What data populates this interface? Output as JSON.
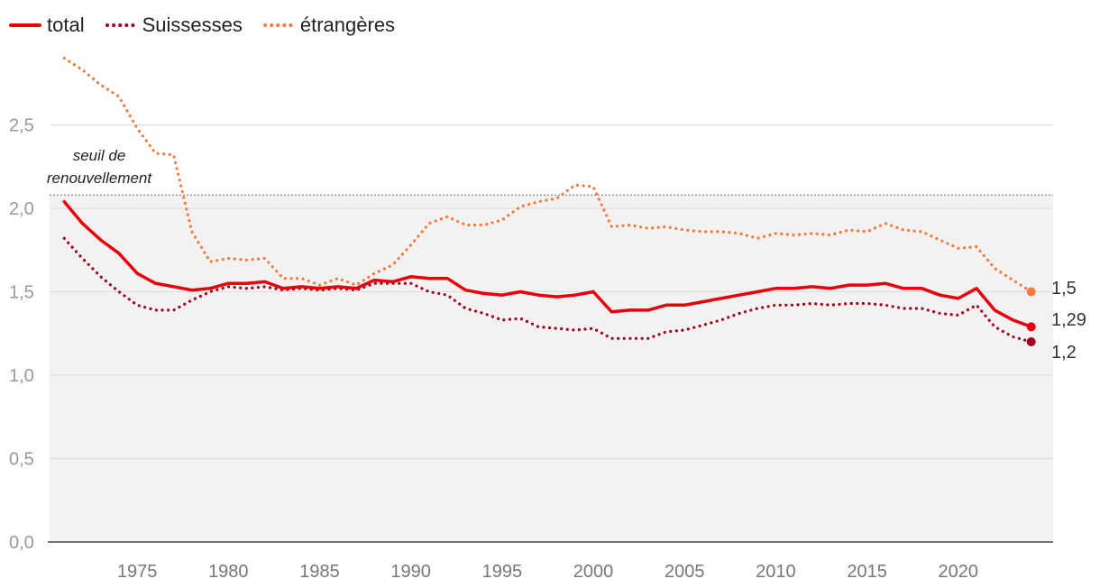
{
  "chart_data": {
    "type": "line",
    "title": "",
    "xlabel": "",
    "ylabel": "",
    "ylim": [
      0,
      3.0
    ],
    "yticks": [
      0,
      0.5,
      1.0,
      1.5,
      2.0,
      2.5
    ],
    "ytick_labels": [
      "0,0",
      "0,5",
      "1,0",
      "1,5",
      "2,0",
      "2,5"
    ],
    "xticks": [
      1975,
      1980,
      1985,
      1990,
      1995,
      2000,
      2005,
      2010,
      2015,
      2020
    ],
    "xtick_labels": [
      "1975",
      "1980",
      "1985",
      "1990",
      "1995",
      "2000",
      "2005",
      "2010",
      "2015",
      "2020"
    ],
    "x": [
      1971,
      1972,
      1973,
      1974,
      1975,
      1976,
      1977,
      1978,
      1979,
      1980,
      1981,
      1982,
      1983,
      1984,
      1985,
      1986,
      1987,
      1988,
      1989,
      1990,
      1991,
      1992,
      1993,
      1994,
      1995,
      1996,
      1997,
      1998,
      1999,
      2000,
      2001,
      2002,
      2003,
      2004,
      2005,
      2006,
      2007,
      2008,
      2009,
      2010,
      2011,
      2012,
      2013,
      2014,
      2015,
      2016,
      2017,
      2018,
      2019,
      2020,
      2021,
      2022,
      2023,
      2024
    ],
    "reference_line": {
      "y": 2.08,
      "label_lines": [
        "seuil de",
        "renouvellement"
      ]
    },
    "shaded_below_reference": true,
    "legend_position": "top-left",
    "series": [
      {
        "name": "total",
        "color": "#e8000b",
        "style": "solid",
        "end_label": "1,29",
        "values": [
          2.04,
          1.91,
          1.81,
          1.73,
          1.61,
          1.55,
          1.53,
          1.51,
          1.52,
          1.55,
          1.55,
          1.56,
          1.52,
          1.53,
          1.52,
          1.53,
          1.52,
          1.57,
          1.56,
          1.59,
          1.58,
          1.58,
          1.51,
          1.49,
          1.48,
          1.5,
          1.48,
          1.47,
          1.48,
          1.5,
          1.38,
          1.39,
          1.39,
          1.42,
          1.42,
          1.44,
          1.46,
          1.48,
          1.5,
          1.52,
          1.52,
          1.53,
          1.52,
          1.54,
          1.54,
          1.55,
          1.52,
          1.52,
          1.48,
          1.46,
          1.52,
          1.39,
          1.33,
          1.29
        ]
      },
      {
        "name": "Suissesses",
        "color": "#a0001e",
        "style": "dotted",
        "end_label": "1,2",
        "values": [
          1.82,
          1.7,
          1.59,
          1.5,
          1.42,
          1.39,
          1.39,
          1.45,
          1.5,
          1.53,
          1.52,
          1.53,
          1.51,
          1.52,
          1.51,
          1.52,
          1.51,
          1.55,
          1.55,
          1.55,
          1.5,
          1.48,
          1.4,
          1.37,
          1.33,
          1.34,
          1.29,
          1.28,
          1.27,
          1.28,
          1.22,
          1.22,
          1.22,
          1.26,
          1.27,
          1.3,
          1.33,
          1.37,
          1.4,
          1.42,
          1.42,
          1.43,
          1.42,
          1.43,
          1.43,
          1.42,
          1.4,
          1.4,
          1.37,
          1.36,
          1.42,
          1.29,
          1.23,
          1.2
        ]
      },
      {
        "name": "étrangères",
        "color": "#f5793a",
        "style": "dotted",
        "end_label": "1,5",
        "values": [
          2.9,
          2.83,
          2.74,
          2.67,
          2.48,
          2.33,
          2.32,
          1.86,
          1.68,
          1.7,
          1.69,
          1.7,
          1.58,
          1.58,
          1.54,
          1.58,
          1.54,
          1.61,
          1.66,
          1.78,
          1.91,
          1.95,
          1.9,
          1.9,
          1.93,
          2.01,
          2.04,
          2.06,
          2.14,
          2.13,
          1.89,
          1.9,
          1.88,
          1.89,
          1.87,
          1.86,
          1.86,
          1.85,
          1.82,
          1.85,
          1.84,
          1.85,
          1.84,
          1.87,
          1.86,
          1.91,
          1.87,
          1.86,
          1.81,
          1.76,
          1.77,
          1.64,
          1.57,
          1.5
        ]
      }
    ]
  }
}
